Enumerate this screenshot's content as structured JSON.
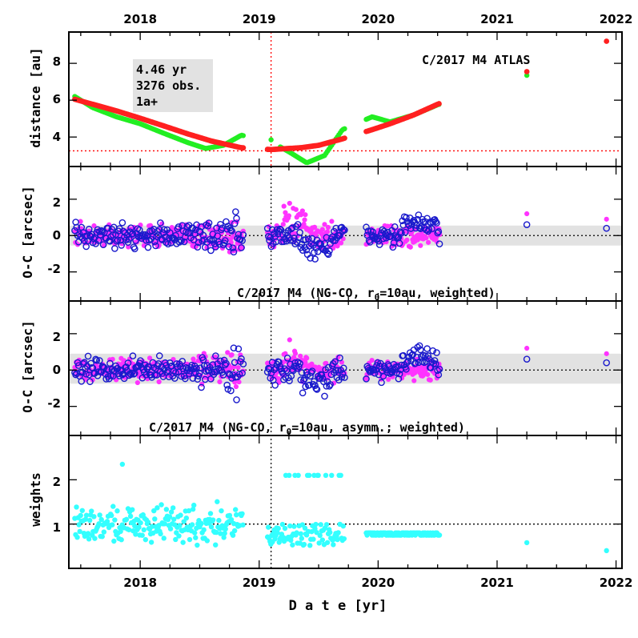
{
  "chart_data": {
    "type": "scatter",
    "title": "C/2017 M4 ATLAS",
    "xlabel": "D a t e [yr]",
    "x_ticks": [
      "2018",
      "2019",
      "2020",
      "2021",
      "2022"
    ],
    "x_range": [
      2017.4,
      2022.05
    ],
    "perihelion_date": 2019.1,
    "colors": {
      "sun_distance": "#ff2020",
      "earth_distance": "#22ee22",
      "oc_ra": "#ff33ff",
      "oc_dec": "#1a1acc",
      "weights": "#33ffff",
      "band": "#e2e2e2",
      "ref_line_red": "#ff0000",
      "ref_line_black": "#000000"
    },
    "panels": [
      {
        "id": "distance",
        "ylabel": "distance [au]",
        "ylim": [
          2.4,
          9.7
        ],
        "y_ticks": [
          4,
          6,
          8
        ],
        "reference_value": 3.25,
        "info_box": {
          "arc": "4.46 yr",
          "observations": "3276 obs.",
          "quality": "1a+"
        },
        "series": [
          {
            "name": "heliocentric distance",
            "points": [
              [
                2017.45,
                6.05
              ],
              [
                2017.6,
                5.78
              ],
              [
                2017.8,
                5.42
              ],
              [
                2018.0,
                5.02
              ],
              [
                2018.2,
                4.6
              ],
              [
                2018.4,
                4.17
              ],
              [
                2018.6,
                3.78
              ],
              [
                2018.85,
                3.42
              ],
              [
                2019.1,
                3.32
              ],
              [
                2019.35,
                3.42
              ],
              [
                2019.5,
                3.55
              ],
              [
                2019.7,
                3.9
              ],
              [
                2019.95,
                4.4
              ],
              [
                2020.1,
                4.72
              ],
              [
                2020.3,
                5.2
              ],
              [
                2020.5,
                5.78
              ],
              [
                2021.25,
                7.5
              ],
              [
                2021.92,
                9.2
              ]
            ]
          },
          {
            "name": "geocentric distance",
            "points": [
              [
                2017.45,
                6.2
              ],
              [
                2017.6,
                5.6
              ],
              [
                2017.8,
                5.1
              ],
              [
                2018.0,
                4.72
              ],
              [
                2018.2,
                4.2
              ],
              [
                2018.4,
                3.7
              ],
              [
                2018.55,
                3.38
              ],
              [
                2018.7,
                3.55
              ],
              [
                2018.85,
                4.1
              ],
              [
                2019.1,
                3.75
              ],
              [
                2019.25,
                3.2
              ],
              [
                2019.4,
                2.6
              ],
              [
                2019.55,
                3.0
              ],
              [
                2019.7,
                4.4
              ],
              [
                2019.95,
                5.1
              ],
              [
                2020.1,
                4.82
              ],
              [
                2020.3,
                5.2
              ],
              [
                2020.5,
                5.75
              ],
              [
                2021.25,
                7.3
              ]
            ]
          }
        ]
      },
      {
        "id": "oc1",
        "ylabel": "O-C [arcsec]",
        "ylim": [
          -3.6,
          3.8
        ],
        "y_ticks": [
          -2,
          0,
          2
        ],
        "band": [
          -0.55,
          0.55
        ],
        "model_label": "C/2017 M4 (NG-CO, r",
        "model_sub": "0",
        "model_label_end": "=10au, weighted)"
      },
      {
        "id": "oc2",
        "ylabel": "O-C [arcsec]",
        "ylim": [
          -3.6,
          3.8
        ],
        "y_ticks": [
          -2,
          0,
          2
        ],
        "band": [
          -0.75,
          0.9
        ],
        "model_label": "C/2017 M4 (NG-CO, r",
        "model_sub": "0",
        "model_label_end": "=10au, asymm.; weighted)"
      },
      {
        "id": "weights",
        "ylabel": "weights",
        "ylim": [
          0.0,
          3.0
        ],
        "y_ticks": [
          1,
          2
        ],
        "reference_value": 1.0
      }
    ]
  }
}
